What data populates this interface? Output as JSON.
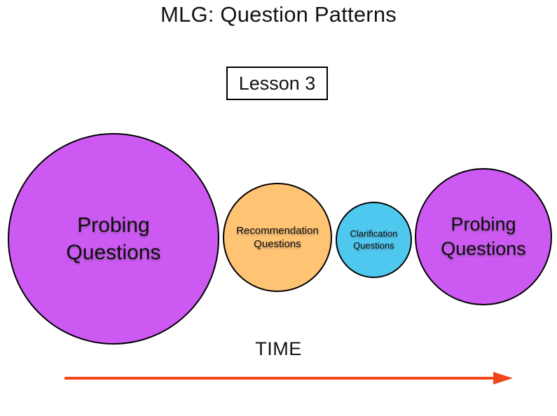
{
  "title": "MLG: Question Patterns",
  "lesson": {
    "label": "Lesson 3"
  },
  "diagram": {
    "circles": [
      {
        "id": "probing-early",
        "label": "Probing\nQuestions",
        "color_key": "probing",
        "relative_size": "largest",
        "order": 1
      },
      {
        "id": "recommendation",
        "label": "Recommendation\nQuestions",
        "color_key": "recommendation",
        "relative_size": "medium",
        "order": 2
      },
      {
        "id": "clarification",
        "label": "Clarification\nQuestions",
        "color_key": "clarification",
        "relative_size": "small",
        "order": 3
      },
      {
        "id": "probing-late",
        "label": "Probing\nQuestions",
        "color_key": "probing",
        "relative_size": "large",
        "order": 4
      }
    ],
    "axis": {
      "label": "TIME",
      "direction": "left-to-right"
    }
  },
  "colors": {
    "probing": "#CC59F2",
    "recommendation": "#FFC374",
    "clarification": "#4FC8F0",
    "arrow": "#F2451A",
    "stroke": "#000000"
  }
}
